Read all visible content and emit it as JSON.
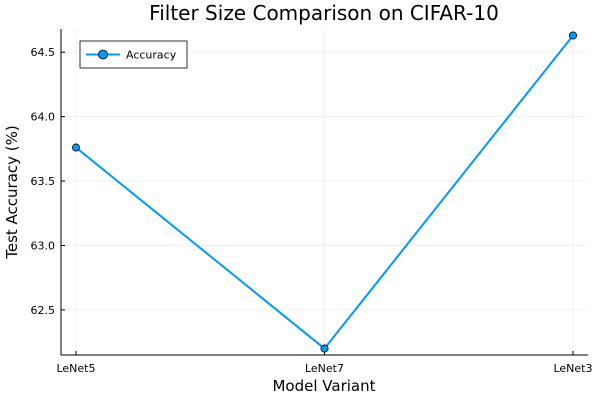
{
  "chart_data": {
    "type": "line",
    "title": "Filter Size Comparison on CIFAR-10",
    "xlabel": "Model Variant",
    "ylabel": "Test Accuracy (%)",
    "categories": [
      "LeNet5",
      "LeNet7",
      "LeNet3"
    ],
    "series": [
      {
        "name": "Accuracy",
        "values": [
          63.76,
          62.2,
          64.63
        ]
      }
    ],
    "ylim": [
      62.15,
      64.68
    ],
    "yticks": [
      62.5,
      63.0,
      63.5,
      64.0,
      64.5
    ],
    "ytick_labels": [
      "62.5",
      "63.0",
      "63.5",
      "64.0",
      "64.5"
    ],
    "grid": true,
    "legend_position": "top-left",
    "series_color": "#009af9"
  }
}
